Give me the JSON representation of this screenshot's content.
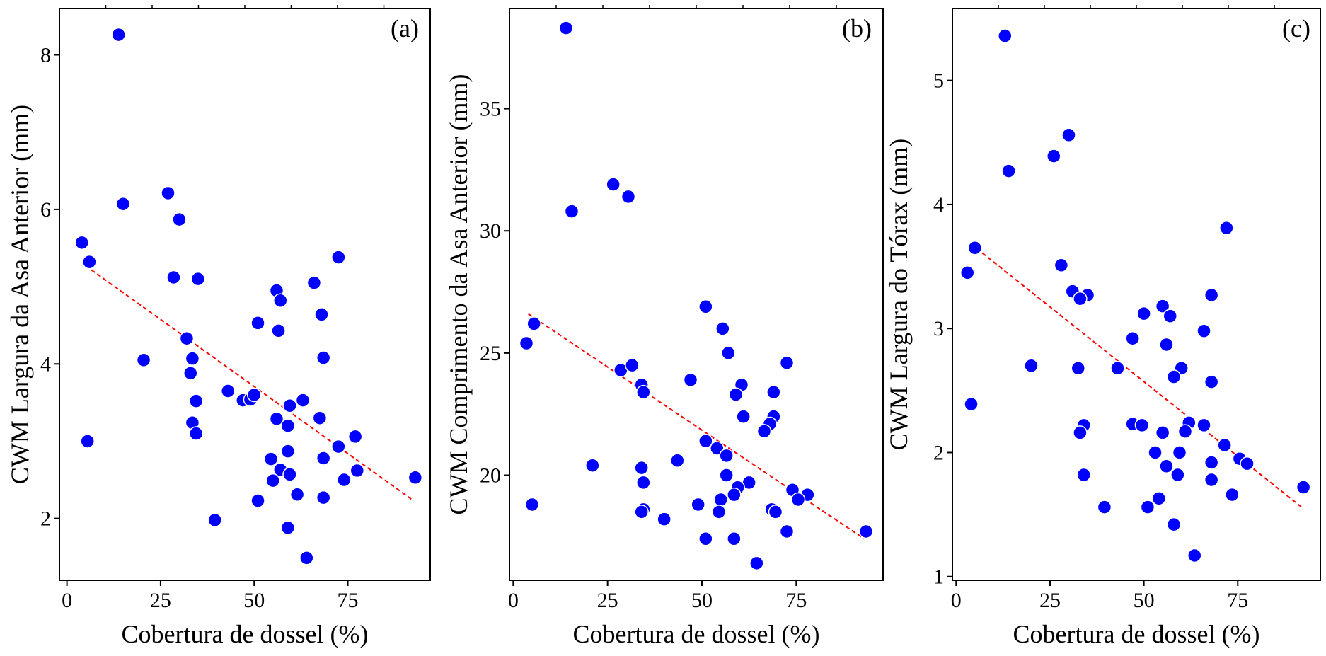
{
  "chart_data": [
    {
      "type": "scatter",
      "panel_label": "(a)",
      "xlabel": "Cobertura de dossel (%)",
      "ylabel": "CWM Largura da Asa Anterior (mm)",
      "xlim": [
        -2,
        97
      ],
      "ylim": [
        1.2,
        8.6
      ],
      "xticks": [
        0,
        25,
        50,
        75
      ],
      "yticks": [
        2,
        4,
        6,
        8
      ],
      "grid": false,
      "point_color": "#0000ff",
      "trend_color": "#ff0000",
      "trend": {
        "x": [
          5,
          92
        ],
        "y": [
          5.27,
          2.25
        ]
      },
      "points": [
        {
          "x": 13.8,
          "y": 8.26
        },
        {
          "x": 15,
          "y": 6.07
        },
        {
          "x": 27,
          "y": 6.21
        },
        {
          "x": 30,
          "y": 5.87
        },
        {
          "x": 4,
          "y": 5.57
        },
        {
          "x": 6,
          "y": 5.32
        },
        {
          "x": 28.5,
          "y": 5.12
        },
        {
          "x": 35,
          "y": 5.1
        },
        {
          "x": 72.5,
          "y": 5.38
        },
        {
          "x": 66,
          "y": 5.05
        },
        {
          "x": 56,
          "y": 4.95
        },
        {
          "x": 57,
          "y": 4.82
        },
        {
          "x": 68,
          "y": 4.64
        },
        {
          "x": 51,
          "y": 4.53
        },
        {
          "x": 56.5,
          "y": 4.43
        },
        {
          "x": 32,
          "y": 4.33
        },
        {
          "x": 20.5,
          "y": 4.05
        },
        {
          "x": 33.5,
          "y": 4.07
        },
        {
          "x": 68.5,
          "y": 4.08
        },
        {
          "x": 33,
          "y": 3.88
        },
        {
          "x": 43,
          "y": 3.65
        },
        {
          "x": 47,
          "y": 3.53
        },
        {
          "x": 49,
          "y": 3.54
        },
        {
          "x": 50,
          "y": 3.6
        },
        {
          "x": 34.5,
          "y": 3.52
        },
        {
          "x": 63,
          "y": 3.53
        },
        {
          "x": 59.5,
          "y": 3.46
        },
        {
          "x": 67.5,
          "y": 3.3
        },
        {
          "x": 56,
          "y": 3.29
        },
        {
          "x": 59,
          "y": 3.2
        },
        {
          "x": 33.5,
          "y": 3.24
        },
        {
          "x": 34.5,
          "y": 3.1
        },
        {
          "x": 5.5,
          "y": 3.0
        },
        {
          "x": 77,
          "y": 3.06
        },
        {
          "x": 72.5,
          "y": 2.93
        },
        {
          "x": 59,
          "y": 2.87
        },
        {
          "x": 54.5,
          "y": 2.77
        },
        {
          "x": 68.5,
          "y": 2.78
        },
        {
          "x": 57,
          "y": 2.63
        },
        {
          "x": 59.5,
          "y": 2.57
        },
        {
          "x": 77.5,
          "y": 2.62
        },
        {
          "x": 55,
          "y": 2.49
        },
        {
          "x": 74,
          "y": 2.5
        },
        {
          "x": 93,
          "y": 2.53
        },
        {
          "x": 61.5,
          "y": 2.31
        },
        {
          "x": 51,
          "y": 2.23
        },
        {
          "x": 68.5,
          "y": 2.27
        },
        {
          "x": 39.5,
          "y": 1.98
        },
        {
          "x": 59,
          "y": 1.88
        },
        {
          "x": 64,
          "y": 1.49
        }
      ]
    },
    {
      "type": "scatter",
      "panel_label": "(b)",
      "xlabel": "Cobertura de dossel (%)",
      "ylabel": "CWM Comprimento da Asa Anterior (mm)",
      "xlim": [
        -1,
        98
      ],
      "ylim": [
        15.7,
        39.1
      ],
      "xticks": [
        0,
        25,
        50,
        75
      ],
      "yticks": [
        20,
        25,
        30,
        35
      ],
      "grid": false,
      "point_color": "#0000ff",
      "trend_color": "#ff0000",
      "trend": {
        "x": [
          4,
          93
        ],
        "y": [
          26.6,
          17.4
        ]
      },
      "points": [
        {
          "x": 14,
          "y": 38.3
        },
        {
          "x": 15.5,
          "y": 30.8
        },
        {
          "x": 26.5,
          "y": 31.9
        },
        {
          "x": 30.5,
          "y": 31.4
        },
        {
          "x": 5.5,
          "y": 26.2
        },
        {
          "x": 3.5,
          "y": 25.4
        },
        {
          "x": 51,
          "y": 26.9
        },
        {
          "x": 55.5,
          "y": 26.0
        },
        {
          "x": 57,
          "y": 25.0
        },
        {
          "x": 72.5,
          "y": 24.6
        },
        {
          "x": 28.5,
          "y": 24.3
        },
        {
          "x": 31.5,
          "y": 24.5
        },
        {
          "x": 47,
          "y": 23.9
        },
        {
          "x": 34,
          "y": 23.7
        },
        {
          "x": 34.5,
          "y": 23.4
        },
        {
          "x": 60.5,
          "y": 23.7
        },
        {
          "x": 59,
          "y": 23.3
        },
        {
          "x": 69,
          "y": 23.4
        },
        {
          "x": 61,
          "y": 22.4
        },
        {
          "x": 69,
          "y": 22.4
        },
        {
          "x": 68,
          "y": 22.1
        },
        {
          "x": 66.5,
          "y": 21.8
        },
        {
          "x": 51,
          "y": 21.4
        },
        {
          "x": 54,
          "y": 21.1
        },
        {
          "x": 56.5,
          "y": 20.8
        },
        {
          "x": 43.5,
          "y": 20.6
        },
        {
          "x": 21,
          "y": 20.4
        },
        {
          "x": 34,
          "y": 20.3
        },
        {
          "x": 56.5,
          "y": 20.0
        },
        {
          "x": 34.5,
          "y": 19.7
        },
        {
          "x": 62.5,
          "y": 19.7
        },
        {
          "x": 59.5,
          "y": 19.5
        },
        {
          "x": 74,
          "y": 19.4
        },
        {
          "x": 78,
          "y": 19.2
        },
        {
          "x": 58.5,
          "y": 19.2
        },
        {
          "x": 55,
          "y": 19.0
        },
        {
          "x": 75.5,
          "y": 19.0
        },
        {
          "x": 5,
          "y": 18.8
        },
        {
          "x": 49,
          "y": 18.8
        },
        {
          "x": 68.5,
          "y": 18.6
        },
        {
          "x": 69.5,
          "y": 18.5
        },
        {
          "x": 34.5,
          "y": 18.6
        },
        {
          "x": 34,
          "y": 18.5
        },
        {
          "x": 54.5,
          "y": 18.5
        },
        {
          "x": 40,
          "y": 18.2
        },
        {
          "x": 72.5,
          "y": 17.7
        },
        {
          "x": 93.5,
          "y": 17.7
        },
        {
          "x": 51,
          "y": 17.4
        },
        {
          "x": 58.5,
          "y": 17.4
        },
        {
          "x": 64.5,
          "y": 16.4
        }
      ]
    },
    {
      "type": "scatter",
      "panel_label": "(c)",
      "xlabel": "Cobertura de dossel (%)",
      "ylabel": "CWM Largura do Tórax (mm)",
      "xlim": [
        -1,
        97
      ],
      "ylim": [
        0.97,
        5.58
      ],
      "xticks": [
        0,
        25,
        50,
        75
      ],
      "yticks": [
        1,
        2,
        3,
        4,
        5
      ],
      "grid": false,
      "point_color": "#0000ff",
      "trend_color": "#ff0000",
      "trend": {
        "x": [
          4,
          92
        ],
        "y": [
          3.68,
          1.56
        ]
      },
      "points": [
        {
          "x": 13,
          "y": 5.36
        },
        {
          "x": 30,
          "y": 4.56
        },
        {
          "x": 26,
          "y": 4.39
        },
        {
          "x": 14,
          "y": 4.27
        },
        {
          "x": 72,
          "y": 3.81
        },
        {
          "x": 5,
          "y": 3.65
        },
        {
          "x": 3,
          "y": 3.45
        },
        {
          "x": 28,
          "y": 3.51
        },
        {
          "x": 31,
          "y": 3.3
        },
        {
          "x": 35,
          "y": 3.27
        },
        {
          "x": 33,
          "y": 3.24
        },
        {
          "x": 68,
          "y": 3.27
        },
        {
          "x": 55,
          "y": 3.18
        },
        {
          "x": 50,
          "y": 3.12
        },
        {
          "x": 57,
          "y": 3.1
        },
        {
          "x": 66,
          "y": 2.98
        },
        {
          "x": 47,
          "y": 2.92
        },
        {
          "x": 56,
          "y": 2.87
        },
        {
          "x": 20,
          "y": 2.7
        },
        {
          "x": 32.5,
          "y": 2.68
        },
        {
          "x": 43,
          "y": 2.68
        },
        {
          "x": 60,
          "y": 2.68
        },
        {
          "x": 58,
          "y": 2.61
        },
        {
          "x": 68,
          "y": 2.57
        },
        {
          "x": 4,
          "y": 2.39
        },
        {
          "x": 47,
          "y": 2.23
        },
        {
          "x": 49.5,
          "y": 2.22
        },
        {
          "x": 34,
          "y": 2.22
        },
        {
          "x": 62,
          "y": 2.24
        },
        {
          "x": 66,
          "y": 2.22
        },
        {
          "x": 33,
          "y": 2.16
        },
        {
          "x": 55,
          "y": 2.16
        },
        {
          "x": 61,
          "y": 2.17
        },
        {
          "x": 71.5,
          "y": 2.06
        },
        {
          "x": 53,
          "y": 2.0
        },
        {
          "x": 59.5,
          "y": 2.0
        },
        {
          "x": 75.5,
          "y": 1.95
        },
        {
          "x": 56,
          "y": 1.89
        },
        {
          "x": 68,
          "y": 1.92
        },
        {
          "x": 77.5,
          "y": 1.91
        },
        {
          "x": 34,
          "y": 1.82
        },
        {
          "x": 59,
          "y": 1.82
        },
        {
          "x": 68,
          "y": 1.78
        },
        {
          "x": 92.5,
          "y": 1.72
        },
        {
          "x": 73.5,
          "y": 1.66
        },
        {
          "x": 54,
          "y": 1.63
        },
        {
          "x": 39.5,
          "y": 1.56
        },
        {
          "x": 51,
          "y": 1.56
        },
        {
          "x": 58,
          "y": 1.42
        },
        {
          "x": 63.5,
          "y": 1.17
        }
      ]
    }
  ]
}
